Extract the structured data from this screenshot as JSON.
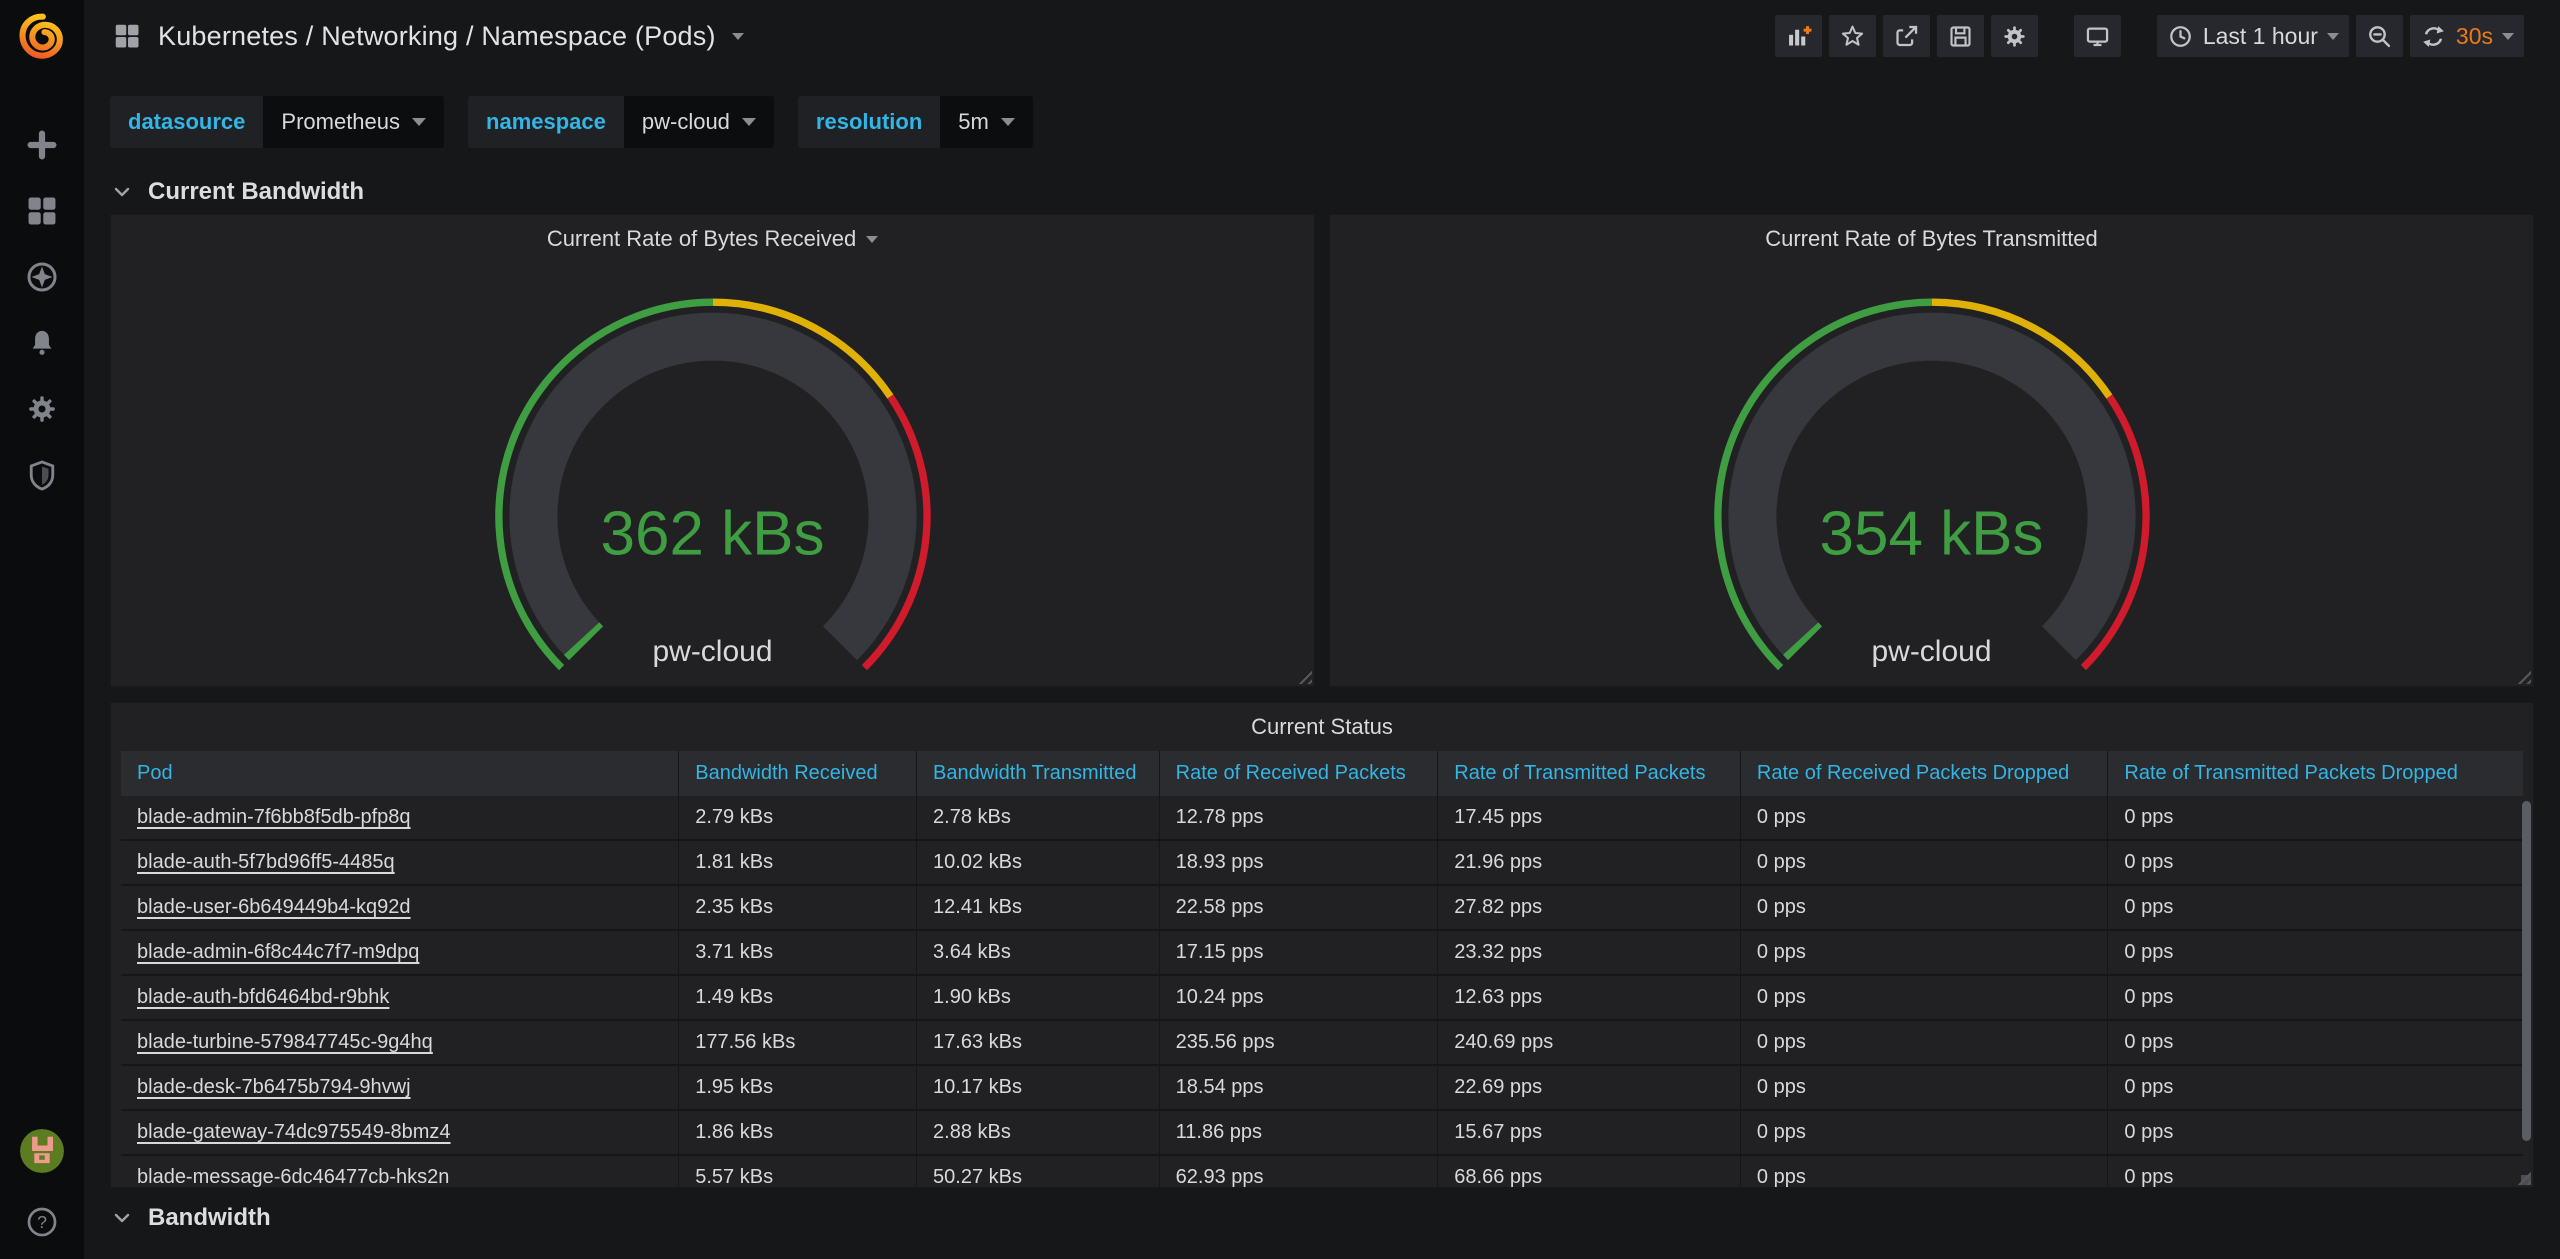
{
  "colors": {
    "page_bg": "#161719",
    "panel_bg": "#212124",
    "sidebar_bg": "#0b0c0e",
    "green": "#3f9e42",
    "yellow": "#e0b106",
    "red": "#cf1b2b",
    "link_blue": "#33b5e5",
    "orange": "#eb7b18"
  },
  "sidebar": {
    "logo_icon": "grafana-logo",
    "items": [
      {
        "icon": "plus-icon",
        "name": "create"
      },
      {
        "icon": "dashboards-grid-icon",
        "name": "dashboards"
      },
      {
        "icon": "compass-icon",
        "name": "explore"
      },
      {
        "icon": "bell-icon",
        "name": "alerting"
      },
      {
        "icon": "gear-icon",
        "name": "configuration"
      },
      {
        "icon": "shield-icon",
        "name": "server-admin"
      }
    ],
    "bottom": {
      "avatar_icon": "user-avatar",
      "help_label": "?"
    }
  },
  "navbar": {
    "dashboard_icon": "apps-grid-icon",
    "title": "Kubernetes / Networking / Namespace (Pods)",
    "action_icons": [
      "add-panel-icon",
      "star-icon",
      "share-icon",
      "save-icon",
      "settings-gear-icon",
      "tv-cycle-icon",
      "clock-icon",
      "zoom-out-icon",
      "refresh-icon"
    ],
    "time_label": "Last 1 hour",
    "refresh_label": "30s"
  },
  "variables": [
    {
      "label": "datasource",
      "value": "Prometheus"
    },
    {
      "label": "namespace",
      "value": "pw-cloud"
    },
    {
      "label": "resolution",
      "value": "5m"
    }
  ],
  "sections": {
    "top": "Current Bandwidth",
    "bottom": "Bandwidth"
  },
  "gauges": [
    {
      "title": "Current Rate of Bytes Received",
      "value": "362 kBs",
      "label": "pw-cloud"
    },
    {
      "title": "Current Rate of Bytes Transmitted",
      "value": "354 kBs",
      "label": "pw-cloud"
    }
  ],
  "chart_data": [
    {
      "type": "gauge",
      "title": "Current Rate of Bytes Received",
      "series": [
        {
          "name": "pw-cloud",
          "value": 362,
          "unit": "kBs"
        }
      ],
      "threshold_fractions": {
        "green": [
          0,
          0.5
        ],
        "yellow": [
          0.5,
          0.71
        ],
        "red": [
          0.71,
          1
        ]
      }
    },
    {
      "type": "gauge",
      "title": "Current Rate of Bytes Transmitted",
      "series": [
        {
          "name": "pw-cloud",
          "value": 354,
          "unit": "kBs"
        }
      ],
      "threshold_fractions": {
        "green": [
          0,
          0.5
        ],
        "yellow": [
          0.5,
          0.71
        ],
        "red": [
          0.71,
          1
        ]
      }
    }
  ],
  "table": {
    "title": "Current Status",
    "columns": [
      "Pod",
      "Bandwidth Received",
      "Bandwidth Transmitted",
      "Rate of Received Packets",
      "Rate of Transmitted Packets",
      "Rate of Received Packets Dropped",
      "Rate of Transmitted Packets Dropped"
    ],
    "rows": [
      {
        "pod": "blade-admin-7f6bb8f5db-pfp8q",
        "values": [
          "2.79 kBs",
          "2.78 kBs",
          "12.78 pps",
          "17.45 pps",
          "0 pps",
          "0 pps"
        ]
      },
      {
        "pod": "blade-auth-5f7bd96ff5-4485q",
        "values": [
          "1.81 kBs",
          "10.02 kBs",
          "18.93 pps",
          "21.96 pps",
          "0 pps",
          "0 pps"
        ]
      },
      {
        "pod": "blade-user-6b649449b4-kq92d",
        "values": [
          "2.35 kBs",
          "12.41 kBs",
          "22.58 pps",
          "27.82 pps",
          "0 pps",
          "0 pps"
        ]
      },
      {
        "pod": "blade-admin-6f8c44c7f7-m9dpq",
        "values": [
          "3.71 kBs",
          "3.64 kBs",
          "17.15 pps",
          "23.32 pps",
          "0 pps",
          "0 pps"
        ]
      },
      {
        "pod": "blade-auth-bfd6464bd-r9bhk",
        "values": [
          "1.49 kBs",
          "1.90 kBs",
          "10.24 pps",
          "12.63 pps",
          "0 pps",
          "0 pps"
        ]
      },
      {
        "pod": "blade-turbine-579847745c-9g4hq",
        "values": [
          "177.56 kBs",
          "17.63 kBs",
          "235.56 pps",
          "240.69 pps",
          "0 pps",
          "0 pps"
        ]
      },
      {
        "pod": "blade-desk-7b6475b794-9hvwj",
        "values": [
          "1.95 kBs",
          "10.17 kBs",
          "18.54 pps",
          "22.69 pps",
          "0 pps",
          "0 pps"
        ]
      },
      {
        "pod": "blade-gateway-74dc975549-8bmz4",
        "values": [
          "1.86 kBs",
          "2.88 kBs",
          "11.86 pps",
          "15.67 pps",
          "0 pps",
          "0 pps"
        ]
      },
      {
        "pod": "blade-message-6dc46477cb-hks2n",
        "values": [
          "5.57 kBs",
          "50.27 kBs",
          "62.93 pps",
          "68.66 pps",
          "0 pps",
          "0 pps"
        ]
      }
    ]
  }
}
